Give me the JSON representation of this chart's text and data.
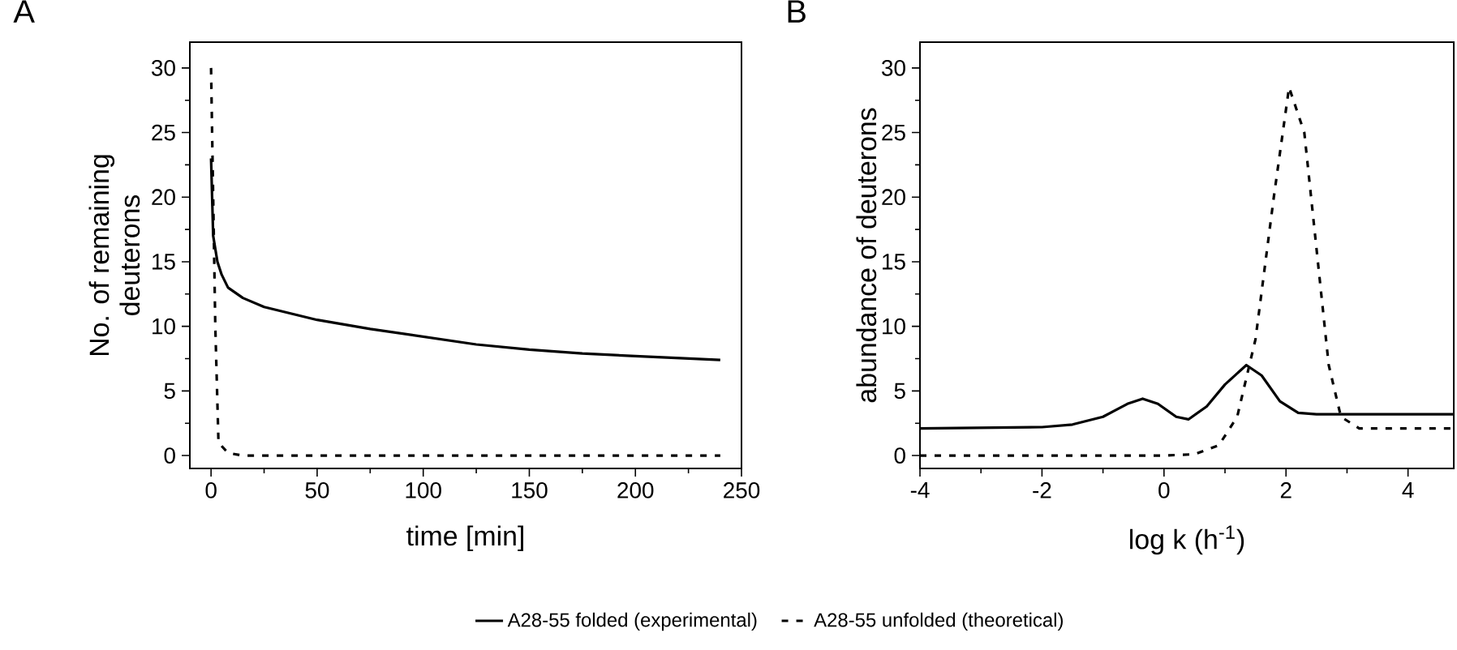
{
  "chart_data": [
    {
      "type": "line",
      "xlabel": "time [min]",
      "ylabel": "No. of remaining deuterons",
      "annotations": [
        "A"
      ],
      "xlim": [
        -10,
        250
      ],
      "ylim": [
        -1,
        32
      ],
      "xticks": [
        0,
        50,
        100,
        150,
        200,
        250
      ],
      "yticks": [
        0,
        5,
        10,
        15,
        20,
        25,
        30
      ],
      "legend": "bottom",
      "series": [
        {
          "name": "A28-55 folded (experimental)",
          "color": "#000000",
          "line_style": "solid",
          "x": [
            0,
            1,
            3,
            5,
            8,
            15,
            25,
            50,
            75,
            100,
            125,
            150,
            175,
            200,
            240
          ],
          "values": [
            23,
            17,
            15,
            14,
            13,
            12.2,
            11.5,
            10.5,
            9.8,
            9.2,
            8.6,
            8.2,
            7.9,
            7.7,
            7.4
          ]
        },
        {
          "name": "A28-55 unfolded (theoretical)",
          "color": "#000000",
          "line_style": "dashed",
          "x": [
            0,
            1,
            2,
            3.5,
            8,
            15,
            240
          ],
          "values": [
            30,
            20,
            10,
            1,
            0.2,
            0,
            0
          ]
        }
      ]
    },
    {
      "type": "line",
      "xlabel": "log k (h$^{-1}$)",
      "ylabel": "abundance of deuterons",
      "annotations": [
        "B"
      ],
      "xlim": [
        -4,
        4.75
      ],
      "ylim": [
        -1,
        32
      ],
      "xticks": [
        -4,
        -2,
        0,
        2,
        4
      ],
      "yticks": [
        0,
        5,
        10,
        15,
        20,
        25,
        30
      ],
      "series": [
        {
          "color": "#000000",
          "line_style": "solid",
          "x": [
            -4,
            -2,
            -1.5,
            -1,
            -0.6,
            -0.35,
            -0.1,
            0.2,
            0.4,
            0.7,
            1.0,
            1.35,
            1.6,
            1.9,
            2.2,
            2.5,
            4.75
          ],
          "values": [
            2.1,
            2.2,
            2.4,
            3.0,
            4.0,
            4.4,
            4.0,
            3.0,
            2.8,
            3.8,
            5.5,
            7.0,
            6.2,
            4.2,
            3.3,
            3.2,
            3.2
          ]
        },
        {
          "color": "#000000",
          "line_style": "dashed",
          "x": [
            -4,
            0,
            0.5,
            0.9,
            1.2,
            1.5,
            1.8,
            2.05,
            2.3,
            2.5,
            2.7,
            2.9,
            3.2,
            4.75
          ],
          "values": [
            0,
            0,
            0.1,
            0.8,
            3,
            9,
            20,
            28.5,
            25,
            16,
            7,
            3,
            2.1,
            2.1
          ]
        }
      ]
    }
  ]
}
